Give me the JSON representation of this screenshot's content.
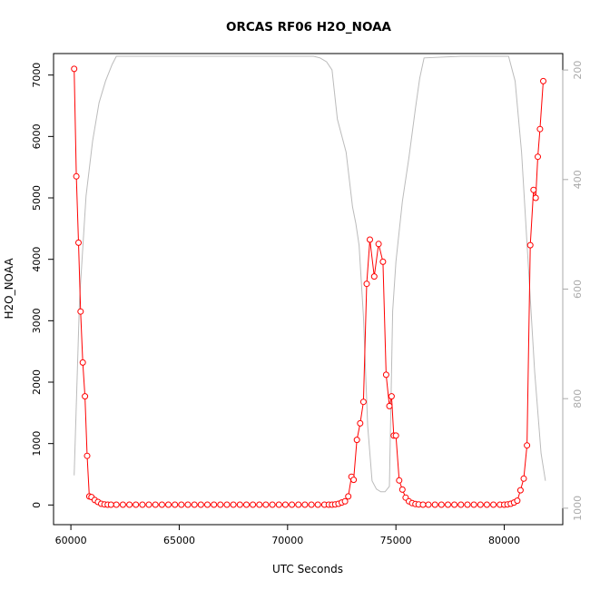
{
  "chart_data": {
    "type": "line",
    "title": "ORCAS RF06 H2O_NOAA",
    "xlabel": "UTC Seconds",
    "ylabel": "H2O_NOAA",
    "xlim": [
      59200,
      82700
    ],
    "ylim": [
      -320,
      7350
    ],
    "x_ticks": [
      60000,
      65000,
      70000,
      75000,
      80000
    ],
    "y_ticks": [
      0,
      1000,
      2000,
      3000,
      4000,
      5000,
      6000,
      7000
    ],
    "y2lim": [
      1030,
      170
    ],
    "y2_ticks": [
      200,
      400,
      600,
      800,
      1000
    ],
    "series": [
      {
        "color": "#ff0000",
        "style": "line+open-circle",
        "x": [
          60150,
          60250,
          60350,
          60450,
          60550,
          60650,
          60750,
          60850,
          60950,
          61100,
          61250,
          61400,
          61550,
          61700,
          61850,
          62100,
          62400,
          62700,
          63000,
          63300,
          63600,
          63900,
          64200,
          64500,
          64800,
          65100,
          65400,
          65700,
          66000,
          66300,
          66600,
          66900,
          67200,
          67500,
          67800,
          68100,
          68400,
          68700,
          69000,
          69300,
          69600,
          69900,
          70200,
          70500,
          70800,
          71100,
          71400,
          71700,
          71900,
          72050,
          72200,
          72350,
          72500,
          72650,
          72800,
          72950,
          73050,
          73200,
          73350,
          73500,
          73650,
          73800,
          74000,
          74200,
          74400,
          74550,
          74700,
          74800,
          74900,
          75000,
          75150,
          75300,
          75450,
          75600,
          75750,
          75900,
          76050,
          76250,
          76500,
          76800,
          77100,
          77400,
          77700,
          78000,
          78300,
          78600,
          78900,
          79200,
          79500,
          79800,
          80000,
          80150,
          80300,
          80450,
          80600,
          80750,
          80900,
          81050,
          81200,
          81350,
          81450,
          81550,
          81650,
          81800
        ],
        "y": [
          7100,
          5350,
          4270,
          3150,
          2320,
          1770,
          800,
          140,
          130,
          80,
          50,
          20,
          10,
          5,
          5,
          5,
          5,
          5,
          5,
          5,
          5,
          5,
          5,
          5,
          5,
          5,
          5,
          5,
          5,
          5,
          5,
          5,
          5,
          5,
          5,
          5,
          5,
          5,
          5,
          5,
          5,
          5,
          5,
          5,
          5,
          5,
          5,
          5,
          5,
          5,
          10,
          20,
          40,
          60,
          140,
          460,
          410,
          1060,
          1330,
          1680,
          3600,
          4320,
          3720,
          4250,
          3960,
          2120,
          1610,
          1770,
          1130,
          1130,
          400,
          250,
          120,
          60,
          30,
          15,
          10,
          5,
          5,
          5,
          5,
          5,
          5,
          5,
          5,
          5,
          5,
          5,
          5,
          5,
          5,
          10,
          20,
          40,
          70,
          240,
          430,
          970,
          4230,
          5130,
          5000,
          5670,
          6120,
          6900
        ]
      },
      {
        "color": "#bbbbbb",
        "axis": "right",
        "style": "line",
        "x": [
          60150,
          60400,
          60700,
          61000,
          61300,
          61600,
          61900,
          62100,
          64000,
          66000,
          68000,
          70000,
          71200,
          71500,
          71800,
          72050,
          72300,
          72700,
          73000,
          73150,
          73300,
          73500,
          73700,
          73900,
          74100,
          74300,
          74500,
          74700,
          74850,
          75000,
          75300,
          75600,
          75900,
          76100,
          76300,
          78000,
          80200,
          80500,
          80800,
          81100,
          81400,
          81700,
          81900
        ],
        "y": [
          940,
          620,
          430,
          330,
          260,
          220,
          190,
          175,
          175,
          175,
          175,
          175,
          175,
          178,
          185,
          200,
          290,
          350,
          450,
          480,
          520,
          650,
          850,
          950,
          965,
          970,
          970,
          960,
          640,
          550,
          440,
          360,
          270,
          215,
          178,
          175,
          175,
          220,
          350,
          550,
          750,
          900,
          950
        ]
      }
    ],
    "grid": false,
    "legend": "none"
  }
}
